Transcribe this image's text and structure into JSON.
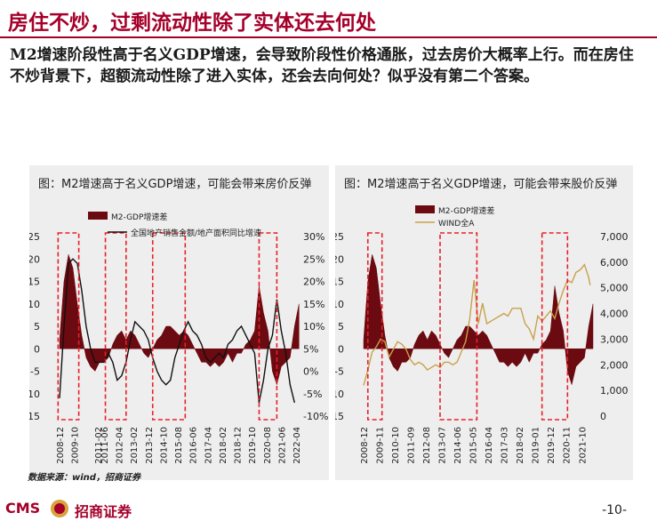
{
  "header": {
    "title": "房住不炒，过剩流动性除了实体还去何处",
    "body": "M2增速阶段性高于名义GDP增速，会导致阶段性价格通胀，过去房价大概率上行。而在房住不炒背景下，超额流动性除了进入实体，还会去向何处？似乎没有第二个答案。"
  },
  "source": "数据来源：wind，招商证券",
  "footer": {
    "logo_cms": "CMS",
    "logo_name": "招商证券",
    "page": "-10-"
  },
  "colors": {
    "accent": "#a5002a",
    "bar": "#6b0a10",
    "line_black": "#111111",
    "line_gold": "#c9a14a",
    "box": "#e8202a"
  },
  "chart_data": [
    {
      "type": "bar+line",
      "title": "图：M2增速高于名义GDP增速，可能会带来房价反弹",
      "legend": [
        "M2-GDP增速差",
        "全国地产销售金额/地产面积同比增速"
      ],
      "x_ticks": [
        "2008-12",
        "2009-10",
        "2011-02",
        "2011-06",
        "2012-04",
        "2013-02",
        "2013-12",
        "2014-10",
        "2015-08",
        "2016-06",
        "2017-04",
        "2018-02",
        "2018-12",
        "2019-10",
        "2020-08",
        "2021-06",
        "2022-04"
      ],
      "xlim": [
        "2008-12",
        "2022-04"
      ],
      "y_left": {
        "ticks": [
          "25",
          "20",
          "15",
          "10",
          "5",
          "0",
          "-5",
          "-10",
          "-15"
        ],
        "range": [
          -15,
          25
        ]
      },
      "y_right": {
        "ticks": [
          "30%",
          "25%",
          "20%",
          "15%",
          "10%",
          "5%",
          "0%",
          "-5%",
          "-10%"
        ],
        "range": [
          -10,
          30
        ]
      },
      "highlight_periods": [
        [
          "2008-11",
          "2010-01"
        ],
        [
          "2011-07",
          "2012-09"
        ],
        [
          "2014-03",
          "2016-01"
        ],
        [
          "2020-03",
          "2021-03"
        ]
      ],
      "series": [
        {
          "name": "M2-GDP增速差",
          "kind": "bar",
          "points": [
            [
              "2008-12",
              2
            ],
            [
              "2009-03",
              15
            ],
            [
              "2009-06",
              21
            ],
            [
              "2009-09",
              18
            ],
            [
              "2009-12",
              10
            ],
            [
              "2010-03",
              3
            ],
            [
              "2010-06",
              -2
            ],
            [
              "2010-09",
              -4
            ],
            [
              "2010-12",
              -5
            ],
            [
              "2011-03",
              -3
            ],
            [
              "2011-06",
              -3
            ],
            [
              "2011-09",
              -2
            ],
            [
              "2011-12",
              1
            ],
            [
              "2012-03",
              3
            ],
            [
              "2012-06",
              4
            ],
            [
              "2012-09",
              2
            ],
            [
              "2012-12",
              4
            ],
            [
              "2013-03",
              3
            ],
            [
              "2013-06",
              1
            ],
            [
              "2013-09",
              -1
            ],
            [
              "2013-12",
              -2
            ],
            [
              "2014-03",
              0
            ],
            [
              "2014-06",
              2
            ],
            [
              "2014-09",
              3
            ],
            [
              "2014-12",
              5
            ],
            [
              "2015-03",
              5
            ],
            [
              "2015-06",
              4
            ],
            [
              "2015-09",
              3
            ],
            [
              "2015-12",
              4
            ],
            [
              "2016-03",
              3
            ],
            [
              "2016-06",
              1
            ],
            [
              "2016-09",
              -1
            ],
            [
              "2016-12",
              -3
            ],
            [
              "2017-03",
              -3
            ],
            [
              "2017-06",
              -4
            ],
            [
              "2017-09",
              -3
            ],
            [
              "2017-12",
              -4
            ],
            [
              "2018-03",
              -3
            ],
            [
              "2018-06",
              -1
            ],
            [
              "2018-09",
              -3
            ],
            [
              "2018-12",
              -1
            ],
            [
              "2019-03",
              -1
            ],
            [
              "2019-06",
              1
            ],
            [
              "2019-09",
              2
            ],
            [
              "2019-12",
              4
            ],
            [
              "2020-03",
              14
            ],
            [
              "2020-06",
              8
            ],
            [
              "2020-09",
              4
            ],
            [
              "2020-12",
              -5
            ],
            [
              "2021-03",
              -8
            ],
            [
              "2021-06",
              -4
            ],
            [
              "2021-09",
              -3
            ],
            [
              "2021-12",
              -2
            ],
            [
              "2022-03",
              5
            ],
            [
              "2022-06",
              10
            ]
          ]
        },
        {
          "name": "全国地产销售金额/地产面积同比增速",
          "kind": "line",
          "axis": "right",
          "points": [
            [
              "2008-12",
              -6
            ],
            [
              "2009-03",
              10
            ],
            [
              "2009-06",
              24
            ],
            [
              "2009-09",
              25
            ],
            [
              "2009-12",
              24
            ],
            [
              "2010-03",
              18
            ],
            [
              "2010-06",
              10
            ],
            [
              "2010-09",
              5
            ],
            [
              "2010-12",
              2
            ],
            [
              "2011-03",
              2
            ],
            [
              "2011-06",
              2
            ],
            [
              "2011-09",
              4
            ],
            [
              "2011-12",
              2
            ],
            [
              "2012-03",
              -2
            ],
            [
              "2012-06",
              -1
            ],
            [
              "2012-09",
              2
            ],
            [
              "2012-12",
              7
            ],
            [
              "2013-03",
              11
            ],
            [
              "2013-06",
              10
            ],
            [
              "2013-09",
              9
            ],
            [
              "2013-12",
              7
            ],
            [
              "2014-03",
              3
            ],
            [
              "2014-06",
              0
            ],
            [
              "2014-09",
              -2
            ],
            [
              "2014-12",
              -3
            ],
            [
              "2015-03",
              -2
            ],
            [
              "2015-06",
              3
            ],
            [
              "2015-09",
              6
            ],
            [
              "2015-12",
              9
            ],
            [
              "2016-03",
              11
            ],
            [
              "2016-06",
              9
            ],
            [
              "2016-09",
              8
            ],
            [
              "2016-12",
              6
            ],
            [
              "2017-03",
              3
            ],
            [
              "2017-06",
              2
            ],
            [
              "2017-09",
              3
            ],
            [
              "2017-12",
              4
            ],
            [
              "2018-03",
              3
            ],
            [
              "2018-06",
              6
            ],
            [
              "2018-09",
              7
            ],
            [
              "2018-12",
              9
            ],
            [
              "2019-03",
              10
            ],
            [
              "2019-06",
              8
            ],
            [
              "2019-09",
              6
            ],
            [
              "2019-12",
              4
            ],
            [
              "2020-03",
              -7
            ],
            [
              "2020-06",
              -2
            ],
            [
              "2020-09",
              5
            ],
            [
              "2020-12",
              8
            ],
            [
              "2021-03",
              16
            ],
            [
              "2021-06",
              9
            ],
            [
              "2021-09",
              4
            ],
            [
              "2021-12",
              -3
            ],
            [
              "2022-03",
              -7
            ]
          ]
        }
      ]
    },
    {
      "type": "bar+line",
      "title": "图：M2增速高于名义GDP增速，可能会带来股价反弹",
      "legend": [
        "M2-GDP增速差",
        "WIND全A"
      ],
      "x_ticks": [
        "2008-12",
        "2009-11",
        "2010-10",
        "2011-09",
        "2012-08",
        "2013-07",
        "2014-06",
        "2015-05",
        "2016-04",
        "2017-03",
        "2018-02",
        "2019-01",
        "2019-12",
        "2020-11",
        "2021-10"
      ],
      "xlim": [
        "2008-12",
        "2022-06"
      ],
      "y_left": {
        "ticks": [
          "25",
          "20",
          "15",
          "10",
          "5",
          "0",
          "-5",
          "-10",
          "-15"
        ],
        "range": [
          -15,
          25
        ]
      },
      "y_right": {
        "ticks": [
          "7,000",
          "6,000",
          "5,000",
          "4,000",
          "3,000",
          "2,000",
          "1,000",
          "0"
        ],
        "range": [
          0,
          7000
        ]
      },
      "highlight_periods": [
        [
          "2009-03",
          "2010-01"
        ],
        [
          "2013-06",
          "2015-08"
        ],
        [
          "2019-06",
          "2020-12"
        ]
      ],
      "series": [
        {
          "name": "M2-GDP增速差",
          "kind": "bar",
          "points": [
            [
              "2008-12",
              2
            ],
            [
              "2009-03",
              15
            ],
            [
              "2009-06",
              21
            ],
            [
              "2009-09",
              18
            ],
            [
              "2009-12",
              10
            ],
            [
              "2010-03",
              3
            ],
            [
              "2010-06",
              -2
            ],
            [
              "2010-09",
              -4
            ],
            [
              "2010-12",
              -5
            ],
            [
              "2011-03",
              -3
            ],
            [
              "2011-06",
              -3
            ],
            [
              "2011-09",
              -2
            ],
            [
              "2011-12",
              1
            ],
            [
              "2012-03",
              3
            ],
            [
              "2012-06",
              4
            ],
            [
              "2012-09",
              2
            ],
            [
              "2012-12",
              4
            ],
            [
              "2013-03",
              3
            ],
            [
              "2013-06",
              1
            ],
            [
              "2013-09",
              -1
            ],
            [
              "2013-12",
              -2
            ],
            [
              "2014-03",
              0
            ],
            [
              "2014-06",
              2
            ],
            [
              "2014-09",
              3
            ],
            [
              "2014-12",
              5
            ],
            [
              "2015-03",
              5
            ],
            [
              "2015-06",
              4
            ],
            [
              "2015-09",
              3
            ],
            [
              "2015-12",
              4
            ],
            [
              "2016-03",
              3
            ],
            [
              "2016-06",
              1
            ],
            [
              "2016-09",
              -1
            ],
            [
              "2016-12",
              -3
            ],
            [
              "2017-03",
              -3
            ],
            [
              "2017-06",
              -4
            ],
            [
              "2017-09",
              -3
            ],
            [
              "2017-12",
              -4
            ],
            [
              "2018-03",
              -3
            ],
            [
              "2018-06",
              -1
            ],
            [
              "2018-09",
              -3
            ],
            [
              "2018-12",
              -1
            ],
            [
              "2019-03",
              -1
            ],
            [
              "2019-06",
              1
            ],
            [
              "2019-09",
              2
            ],
            [
              "2019-12",
              4
            ],
            [
              "2020-03",
              14
            ],
            [
              "2020-06",
              8
            ],
            [
              "2020-09",
              4
            ],
            [
              "2020-12",
              -5
            ],
            [
              "2021-03",
              -8
            ],
            [
              "2021-06",
              -4
            ],
            [
              "2021-09",
              -3
            ],
            [
              "2021-12",
              -2
            ],
            [
              "2022-03",
              5
            ],
            [
              "2022-06",
              10
            ]
          ]
        },
        {
          "name": "WIND全A",
          "kind": "line",
          "axis": "right",
          "points": [
            [
              "2008-12",
              1200
            ],
            [
              "2009-03",
              1800
            ],
            [
              "2009-06",
              2500
            ],
            [
              "2009-09",
              2700
            ],
            [
              "2009-12",
              3000
            ],
            [
              "2010-03",
              2900
            ],
            [
              "2010-06",
              2300
            ],
            [
              "2010-09",
              2600
            ],
            [
              "2010-12",
              2900
            ],
            [
              "2011-03",
              2800
            ],
            [
              "2011-06",
              2600
            ],
            [
              "2011-09",
              2200
            ],
            [
              "2011-12",
              2000
            ],
            [
              "2012-03",
              2100
            ],
            [
              "2012-06",
              2000
            ],
            [
              "2012-09",
              1800
            ],
            [
              "2012-12",
              1900
            ],
            [
              "2013-03",
              2000
            ],
            [
              "2013-06",
              1900
            ],
            [
              "2013-09",
              2100
            ],
            [
              "2013-12",
              2100
            ],
            [
              "2014-03",
              2000
            ],
            [
              "2014-06",
              2100
            ],
            [
              "2014-09",
              2500
            ],
            [
              "2014-12",
              2900
            ],
            [
              "2015-03",
              3800
            ],
            [
              "2015-06",
              5300
            ],
            [
              "2015-09",
              3600
            ],
            [
              "2015-12",
              4400
            ],
            [
              "2016-03",
              3600
            ],
            [
              "2016-06",
              3700
            ],
            [
              "2016-09",
              3800
            ],
            [
              "2016-12",
              3900
            ],
            [
              "2017-03",
              4000
            ],
            [
              "2017-06",
              3900
            ],
            [
              "2017-09",
              4200
            ],
            [
              "2017-12",
              4200
            ],
            [
              "2018-03",
              4200
            ],
            [
              "2018-06",
              3600
            ],
            [
              "2018-09",
              3400
            ],
            [
              "2018-12",
              3000
            ],
            [
              "2019-03",
              3900
            ],
            [
              "2019-06",
              3700
            ],
            [
              "2019-09",
              3900
            ],
            [
              "2019-12",
              4100
            ],
            [
              "2020-03",
              3800
            ],
            [
              "2020-06",
              4400
            ],
            [
              "2020-09",
              4900
            ],
            [
              "2020-12",
              5300
            ],
            [
              "2021-03",
              5200
            ],
            [
              "2021-06",
              5600
            ],
            [
              "2021-09",
              5700
            ],
            [
              "2021-12",
              5900
            ],
            [
              "2022-03",
              5400
            ],
            [
              "2022-04",
              5100
            ]
          ]
        }
      ]
    }
  ]
}
